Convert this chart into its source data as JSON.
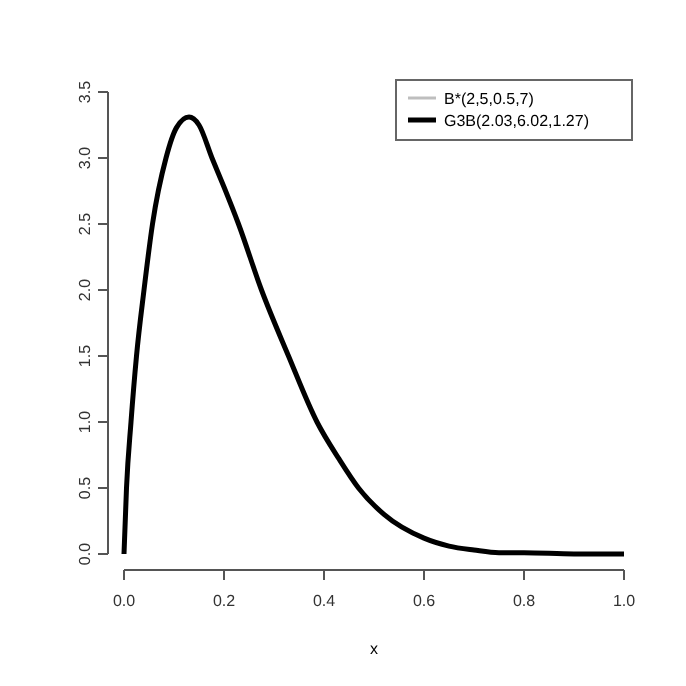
{
  "chart_data": {
    "type": "line",
    "xlabel": "x",
    "xlim": [
      0,
      1
    ],
    "ylim": [
      0,
      3.5
    ],
    "xticks": [
      {
        "value": 0,
        "label": "0.0"
      },
      0.2,
      0.4,
      0.6,
      0.8,
      {
        "value": 1,
        "label": "1.0"
      }
    ],
    "yticks": [
      {
        "value": 0,
        "label": "0.0"
      },
      0.5,
      {
        "value": 1,
        "label": "1.0"
      },
      1.5,
      {
        "value": 2,
        "label": "2.0"
      },
      2.5,
      {
        "value": 3,
        "label": "3.0"
      },
      3.5
    ],
    "legend": "top right",
    "grid": false,
    "series": [
      {
        "name": "B*(2,5,0.5,7)",
        "color": "#bebebe"
      },
      {
        "name": "G3B(2.03,6.02,1.27)",
        "color": "#000000",
        "x": [
          0,
          0.005,
          0.014,
          0.025,
          0.04,
          0.057,
          0.084,
          0.105,
          0.13,
          0.15,
          0.176,
          0.2,
          0.229,
          0.275,
          0.329,
          0.386,
          0.43,
          0.469,
          0.52,
          0.6,
          0.65,
          0.7,
          0.75,
          0.8,
          0.9,
          1
        ],
        "values": [
          0,
          0.5,
          1.0,
          1.5,
          2.0,
          2.5,
          3.0,
          3.23,
          3.31,
          3.25,
          3.0,
          2.78,
          2.5,
          2.0,
          1.5,
          1.0,
          0.72,
          0.5,
          0.3,
          0.12,
          0.06,
          0.03,
          0.01,
          0.01,
          0,
          0
        ]
      }
    ]
  }
}
